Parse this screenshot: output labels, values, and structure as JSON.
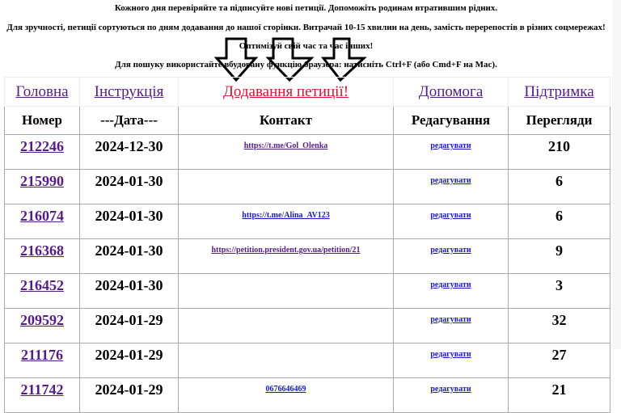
{
  "intro": {
    "line1": "Кожного дня перевіряйте та підписуйте нові петиції. Допоможіть родинам втратившим рідних.",
    "line2": "Для зручності, петиції сортуються по дням додавання до нашої сторінки. Витрачай 10-15 хвилин на день, замість перерепостів в різних соцмережах!",
    "line3": "Оптимізуй свій час та час інших!",
    "line4": "Для пошуку використайте вбудовану функцію браузера: натисніть Ctrl+F (або Cmd+F на Mac)."
  },
  "nav": [
    "Головна",
    "Інструкція",
    "Додавання петиції!",
    "Допомога",
    "Підтримка"
  ],
  "headers": [
    "Номер",
    "---Дата---",
    "Контакт",
    "Редагування",
    "Перегляди"
  ],
  "edit_label": "редагувати",
  "rows": [
    {
      "id": "212246",
      "date": "2024-12-30",
      "contact": "https://t.me/Gol_Olenka",
      "views": "210"
    },
    {
      "id": "215990",
      "date": "2024-01-30",
      "contact": "",
      "views": "6"
    },
    {
      "id": "216074",
      "date": "2024-01-30",
      "contact": "https://t.me/Alina_AV123",
      "views": "6"
    },
    {
      "id": "216368",
      "date": "2024-01-30",
      "contact": "https://petition.president.gov.ua/petition/21",
      "views": "9"
    },
    {
      "id": "216452",
      "date": "2024-01-30",
      "contact": "",
      "views": "3"
    },
    {
      "id": "209592",
      "date": "2024-01-29",
      "contact": "",
      "views": "32"
    },
    {
      "id": "211176",
      "date": "2024-01-29",
      "contact": "",
      "views": "27"
    },
    {
      "id": "211742",
      "date": "2024-01-29",
      "contact": "0676646469",
      "views": "21"
    }
  ],
  "colors": {
    "visited_link": "#551a8b",
    "link": "#1a1acc",
    "highlight": "#e0102e"
  }
}
